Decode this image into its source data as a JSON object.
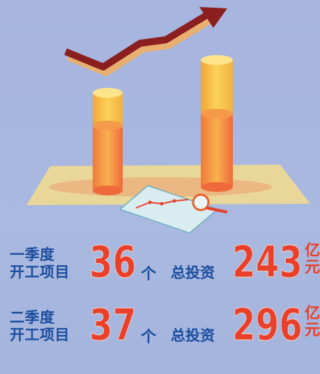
{
  "rows": [
    {
      "label": [
        "一季度",
        "开工项目"
      ],
      "count": 36,
      "count_unit": "个",
      "invest_label": "总投资",
      "amount": 243,
      "amount_unit": [
        "亿",
        "元"
      ]
    },
    {
      "label": [
        "二季度",
        "开工项目"
      ],
      "count": 37,
      "count_unit": "个",
      "invest_label": "总投资",
      "amount": 296,
      "amount_unit": [
        "亿",
        "元"
      ]
    }
  ]
}
